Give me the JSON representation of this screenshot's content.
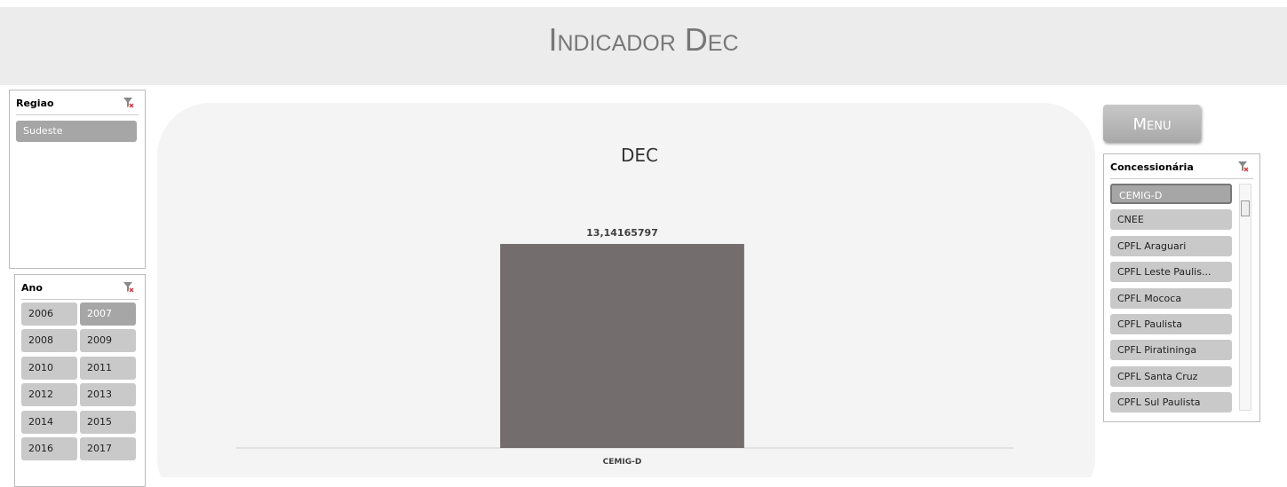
{
  "header": {
    "title": "Indicador Dec"
  },
  "menu": {
    "label": "Menu"
  },
  "slicers": {
    "regiao": {
      "title": "Regiao",
      "items": [
        "Sudeste"
      ],
      "selected": [
        "Sudeste"
      ]
    },
    "ano": {
      "title": "Ano",
      "items": [
        "2006",
        "2007",
        "2008",
        "2009",
        "2010",
        "2011",
        "2012",
        "2013",
        "2014",
        "2015",
        "2016",
        "2017"
      ],
      "selected": [
        "2007"
      ]
    },
    "concessionaria": {
      "title": "Concessionária",
      "items": [
        "CEMIG-D",
        "CNEE",
        "CPFL Araguari",
        "CPFL Leste Paulis...",
        "CPFL Mococa",
        "CPFL Paulista",
        "CPFL Piratininga",
        "CPFL Santa Cruz",
        "CPFL Sul Paulista"
      ],
      "selected": [
        "CEMIG-D"
      ]
    }
  },
  "chart_data": {
    "type": "bar",
    "title": "DEC",
    "categories": [
      "CEMIG-D"
    ],
    "values": [
      13.14165797
    ],
    "value_labels": [
      "13,14165797"
    ],
    "color": "#736e6d",
    "ylim": [
      0,
      14
    ]
  }
}
